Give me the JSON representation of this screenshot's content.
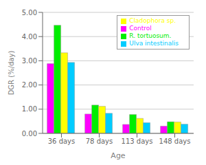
{
  "chart_data": {
    "type": "bar",
    "xlabel": "Age",
    "ylabel": "DGR (%/day)",
    "categories": [
      "36 days",
      "78 days",
      "113 days",
      "148 days"
    ],
    "series": [
      {
        "name": "Control",
        "color": "#FF00FF",
        "values": [
          2.88,
          0.8,
          0.37,
          0.3
        ]
      },
      {
        "name": "R. tortuosum.",
        "color": "#00EE00",
        "values": [
          4.47,
          1.17,
          0.78,
          0.48
        ]
      },
      {
        "name": "Cladophora sp.",
        "color": "#FFFF00",
        "values": [
          3.33,
          1.12,
          0.62,
          0.47
        ]
      },
      {
        "name": "Ulva intestinalis",
        "color": "#00CCFF",
        "values": [
          2.93,
          0.83,
          0.44,
          0.38
        ]
      }
    ],
    "ylim": [
      0.0,
      5.0
    ],
    "yticks": [
      {
        "value": 0,
        "label": "0.00"
      },
      {
        "value": 1,
        "label": "1.00"
      },
      {
        "value": 2,
        "label": "2.00"
      },
      {
        "value": 3,
        "label": "3.00"
      },
      {
        "value": 4,
        "label": "4.00"
      },
      {
        "value": 5,
        "label": "5.00"
      }
    ],
    "grid": true,
    "legend": "upper right"
  }
}
